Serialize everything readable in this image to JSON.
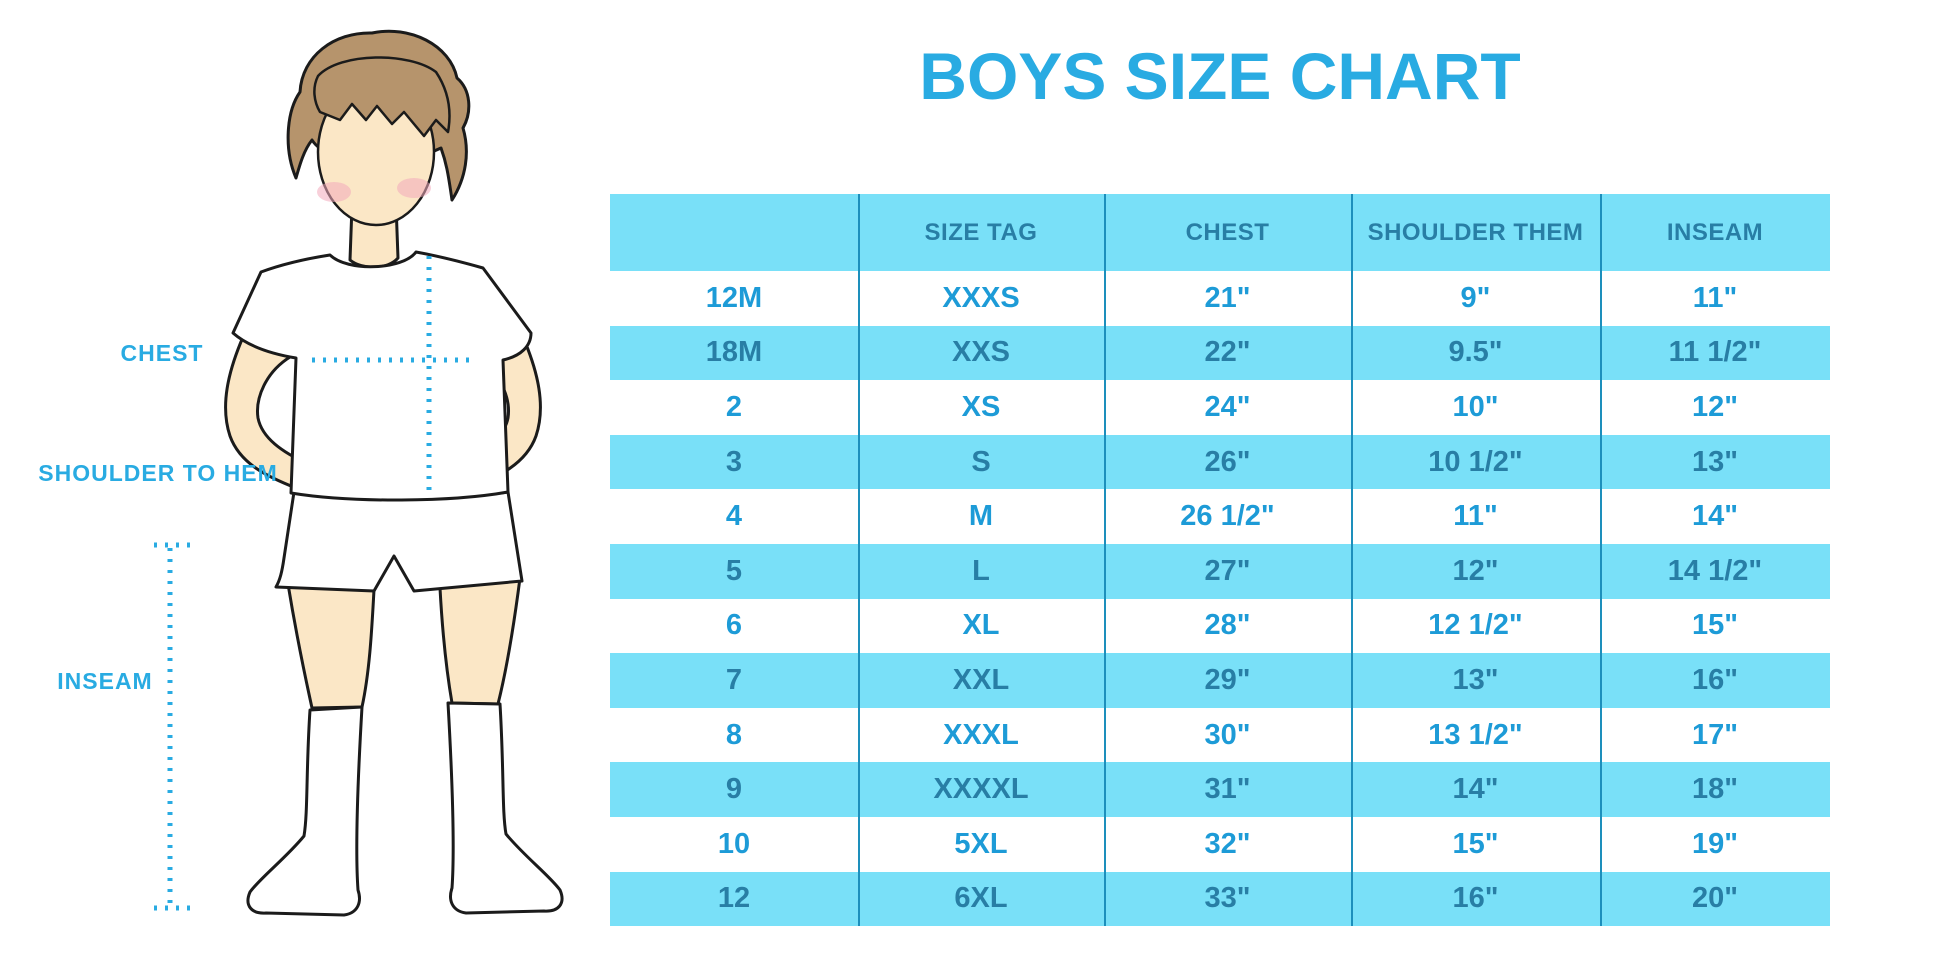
{
  "title": "BOYS SIZE CHART",
  "figure": {
    "illustration": "boy-with-measurement-lines",
    "labels": {
      "chest": "CHEST",
      "shoulder_to_hem": "SHOULDER TO HEM",
      "inseam": "INSEAM"
    }
  },
  "chart_data": {
    "type": "table",
    "title": "BOYS SIZE CHART",
    "columns": [
      "",
      "SIZE TAG",
      "CHEST",
      "SHOULDER THEM",
      "INSEAM"
    ],
    "rows": [
      [
        "12M",
        "XXXS",
        "21\"",
        "9\"",
        "11\""
      ],
      [
        "18M",
        "XXS",
        "22\"",
        "9.5\"",
        "11 1/2\""
      ],
      [
        "2",
        "XS",
        "24\"",
        "10\"",
        "12\""
      ],
      [
        "3",
        "S",
        "26\"",
        "10 1/2\"",
        "13\""
      ],
      [
        "4",
        "M",
        "26 1/2\"",
        "11\"",
        "14\""
      ],
      [
        "5",
        "L",
        "27\"",
        "12\"",
        "14 1/2\""
      ],
      [
        "6",
        "XL",
        "28\"",
        "12 1/2\"",
        "15\""
      ],
      [
        "7",
        "XXL",
        "29\"",
        "13\"",
        "16\""
      ],
      [
        "8",
        "XXXL",
        "30\"",
        "13 1/2\"",
        "17\""
      ],
      [
        "9",
        "XXXXL",
        "31\"",
        "14\"",
        "18\""
      ],
      [
        "10",
        "5XL",
        "32\"",
        "15\"",
        "19\""
      ],
      [
        "12",
        "6XL",
        "33\"",
        "16\"",
        "20\""
      ]
    ],
    "layout_hints": {
      "striped_rows": "alternating white and cyan, header cyan",
      "grid": "vertical column dividers only"
    }
  },
  "colors": {
    "accent_blue": "#29ABE2",
    "row_cyan": "#79E0F8",
    "dark_cell_text": "#287EA5",
    "light_cell_text": "#1D9BD7",
    "divider": "#1D8FBC",
    "skin": "#FBE7C6",
    "hair": "#B6946C",
    "blush": "#F3A9BC",
    "outline": "#1b1b1b"
  }
}
